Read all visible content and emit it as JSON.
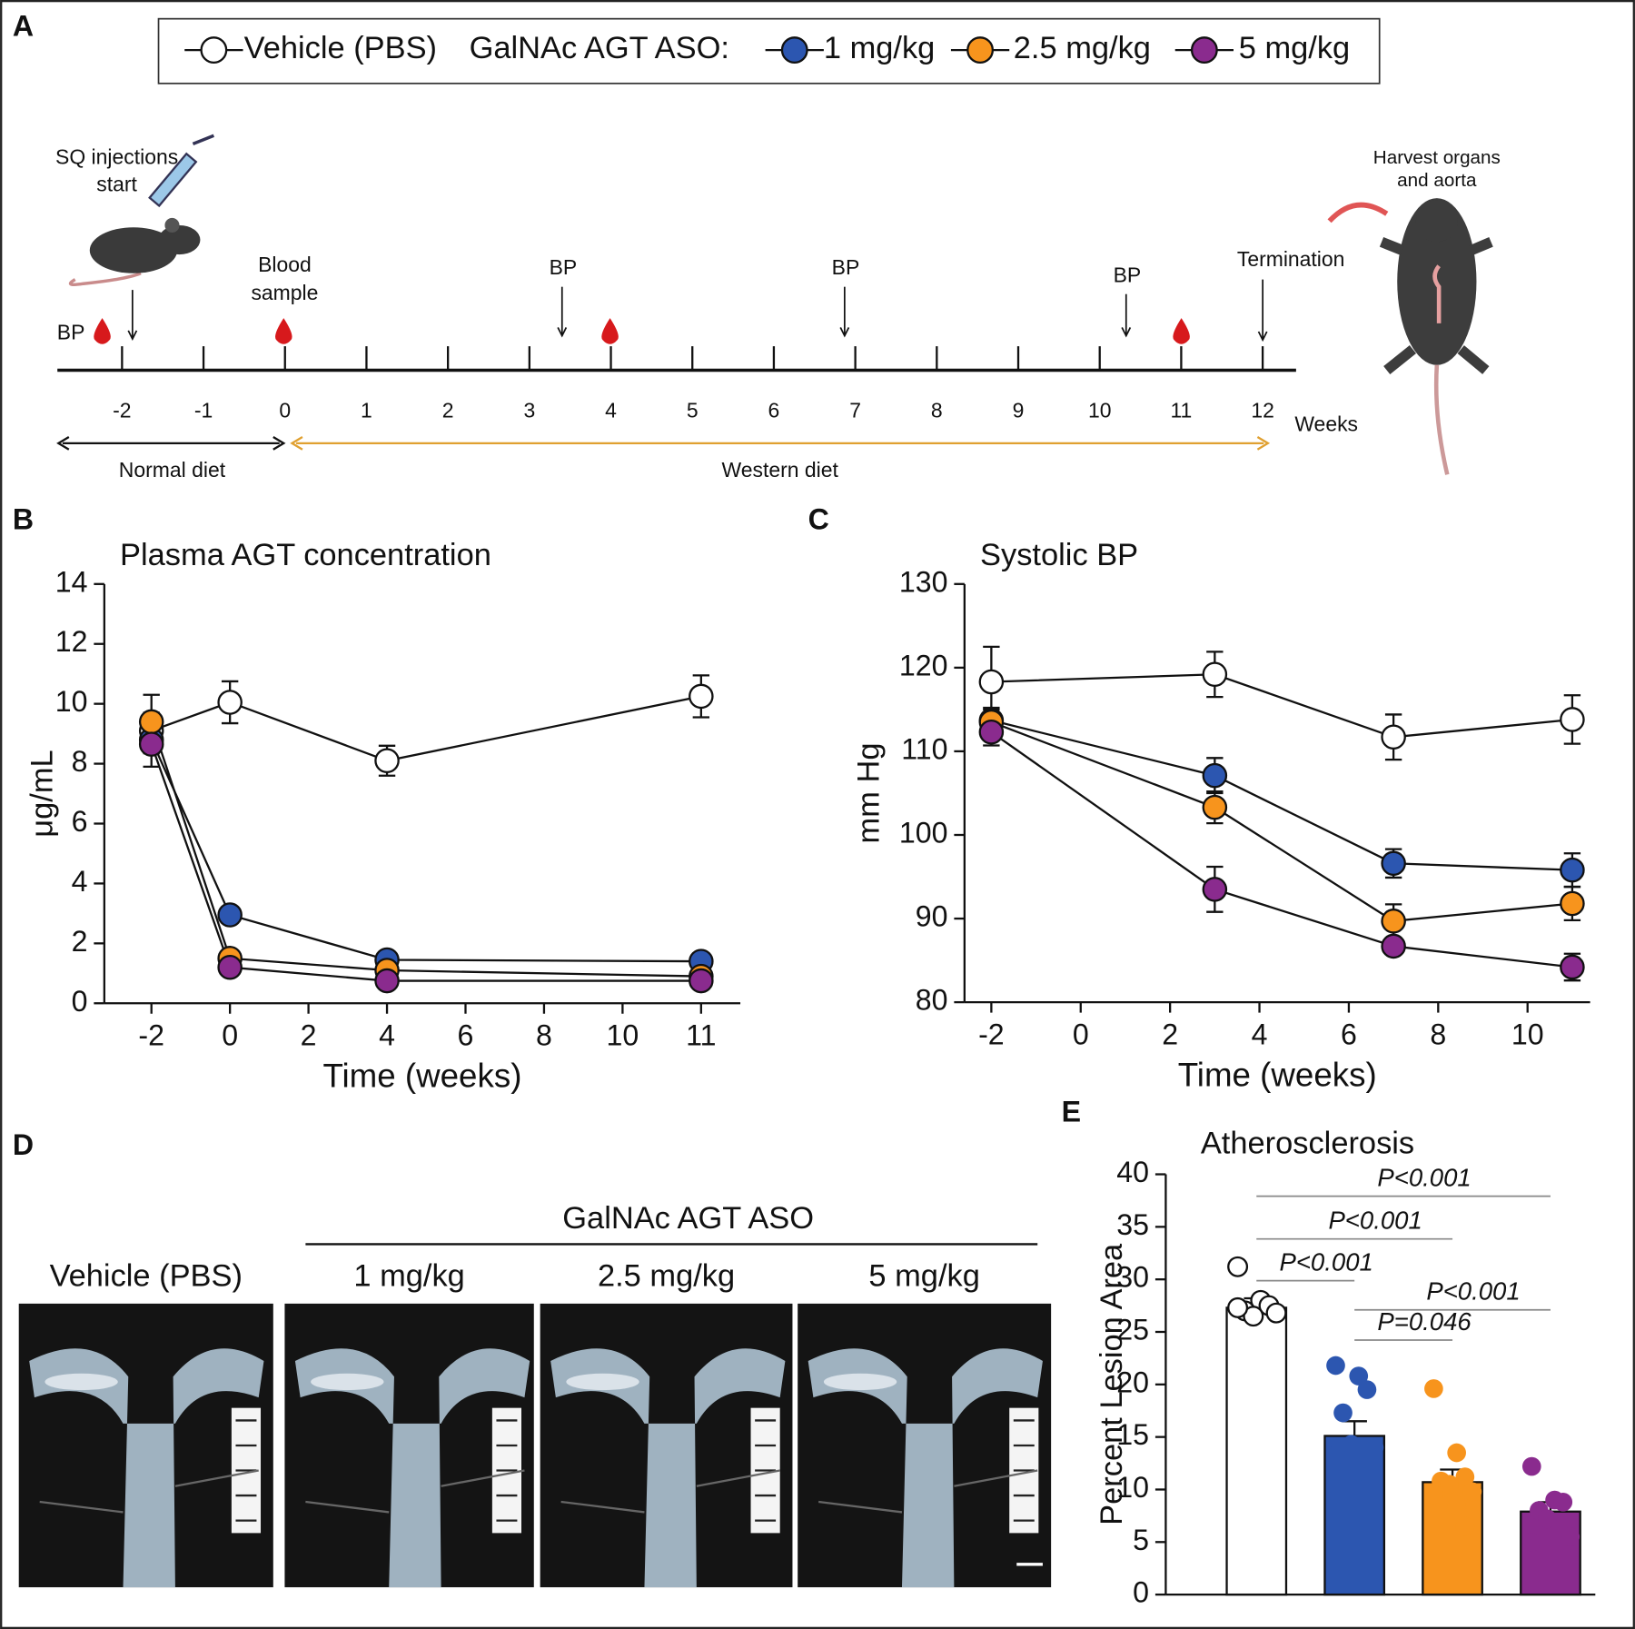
{
  "panel_labels": [
    "A",
    "B",
    "C",
    "D",
    "E"
  ],
  "legend": {
    "group": "GalNAc AGT ASO:",
    "entries": [
      {
        "name": "Vehicle (PBS)",
        "color": "#ffffff"
      },
      {
        "name": "1 mg/kg",
        "color": "#2c56b0"
      },
      {
        "name": "2.5 mg/kg",
        "color": "#f7941d"
      },
      {
        "name": "5 mg/kg",
        "color": "#8a2b8e"
      }
    ]
  },
  "timeline": {
    "ticks": [
      "-2",
      "-1",
      "0",
      "1",
      "2",
      "3",
      "4",
      "5",
      "6",
      "7",
      "8",
      "9",
      "10",
      "11",
      "12"
    ],
    "unit": "Weeks",
    "injection": [
      "SQ injections",
      "start"
    ],
    "blood": [
      "Blood",
      "sample"
    ],
    "bp": [
      "BP",
      "BP",
      "BP",
      "BP"
    ],
    "termination": "Termination",
    "harvest": [
      "Harvest organs",
      "and aorta"
    ],
    "diets": [
      "Normal diet",
      "Western diet"
    ]
  },
  "chart_data": [
    {
      "type": "line",
      "title": "Plasma AGT concentration",
      "x_label": "Time (weeks)",
      "y_label": "μg/mL",
      "x": [
        -2,
        0,
        4,
        11
      ],
      "xlim": [
        -3.2,
        11.5
      ],
      "xticks": [
        -2,
        0,
        2,
        4,
        6,
        8,
        10,
        11
      ],
      "ylim": [
        0,
        14
      ],
      "yticks": [
        0,
        2,
        4,
        6,
        8,
        10,
        12,
        14
      ],
      "series": [
        {
          "color": "#ffffff",
          "values": [
            9.1,
            10.05,
            8.1,
            10.25
          ],
          "errors": [
            1.2,
            0.7,
            0.5,
            0.7
          ]
        },
        {
          "color": "#2c56b0",
          "values": [
            8.8,
            2.95,
            1.45,
            1.4
          ],
          "errors": [
            0.3,
            0.15,
            0.1,
            0.1
          ]
        },
        {
          "color": "#f7941d",
          "values": [
            9.4,
            1.5,
            1.1,
            0.9
          ],
          "errors": [
            0.3,
            0.15,
            0.1,
            0.1
          ]
        },
        {
          "color": "#8a2b8e",
          "values": [
            8.65,
            1.2,
            0.75,
            0.75
          ],
          "errors": [
            0.3,
            0.1,
            0.1,
            0.1
          ]
        }
      ]
    },
    {
      "type": "line",
      "title": "Systolic BP",
      "x_label": "Time (weeks)",
      "y_label": "mm Hg",
      "x": [
        -2,
        3,
        7,
        11
      ],
      "xlim": [
        -2.6,
        11.4
      ],
      "xticks": [
        -2,
        0,
        2,
        4,
        6,
        8,
        10
      ],
      "ylim": [
        80,
        130
      ],
      "yticks": [
        80,
        90,
        100,
        110,
        120,
        130
      ],
      "series": [
        {
          "color": "#ffffff",
          "values": [
            118.3,
            119.2,
            111.7,
            113.8
          ],
          "errors": [
            4.2,
            2.7,
            2.7,
            2.9
          ]
        },
        {
          "color": "#2c56b0",
          "values": [
            113.7,
            107.1,
            96.6,
            95.8
          ],
          "errors": [
            1.5,
            2.1,
            1.7,
            2.0
          ]
        },
        {
          "color": "#f7941d",
          "values": [
            113.5,
            103.3,
            89.7,
            91.8
          ],
          "errors": [
            1.5,
            1.9,
            2.0,
            2.0
          ]
        },
        {
          "color": "#8a2b8e",
          "values": [
            112.3,
            93.5,
            86.7,
            84.2
          ],
          "errors": [
            1.6,
            2.7,
            0.6,
            1.6
          ]
        }
      ]
    },
    {
      "type": "bar",
      "title": "Atherosclerosis",
      "y_label": "Percent Lesion Area",
      "ylim": [
        0,
        40
      ],
      "yticks": [
        0,
        5,
        10,
        15,
        20,
        25,
        30,
        35,
        40
      ],
      "values": [
        27.3,
        15.1,
        10.7,
        7.9
      ],
      "errors": [
        0.9,
        1.4,
        1.2,
        0.9
      ],
      "colors": [
        "#ffffff",
        "#2c56b0",
        "#f7941d",
        "#8a2b8e"
      ],
      "points": [
        [
          31.2,
          28.0,
          27.5,
          27.0,
          26.5,
          26.8,
          27.3
        ],
        [
          21.8,
          20.8,
          19.5,
          17.3,
          14.3,
          14.0,
          13.3,
          10.0,
          9.8
        ],
        [
          19.6,
          13.5,
          11.2,
          10.8,
          10.5,
          9.8,
          9.5,
          8.5,
          6.5
        ],
        [
          12.2,
          9.0,
          8.8,
          8.0,
          7.2,
          5.5,
          5.0
        ]
      ],
      "annotations": [
        "P<0.001",
        "P<0.001",
        "P<0.001",
        "P<0.001",
        "P=0.046"
      ]
    }
  ],
  "photos": {
    "header": "GalNAc AGT ASO",
    "labels": [
      "Vehicle (PBS)",
      "1 mg/kg",
      "2.5 mg/kg",
      "5 mg/kg"
    ]
  }
}
